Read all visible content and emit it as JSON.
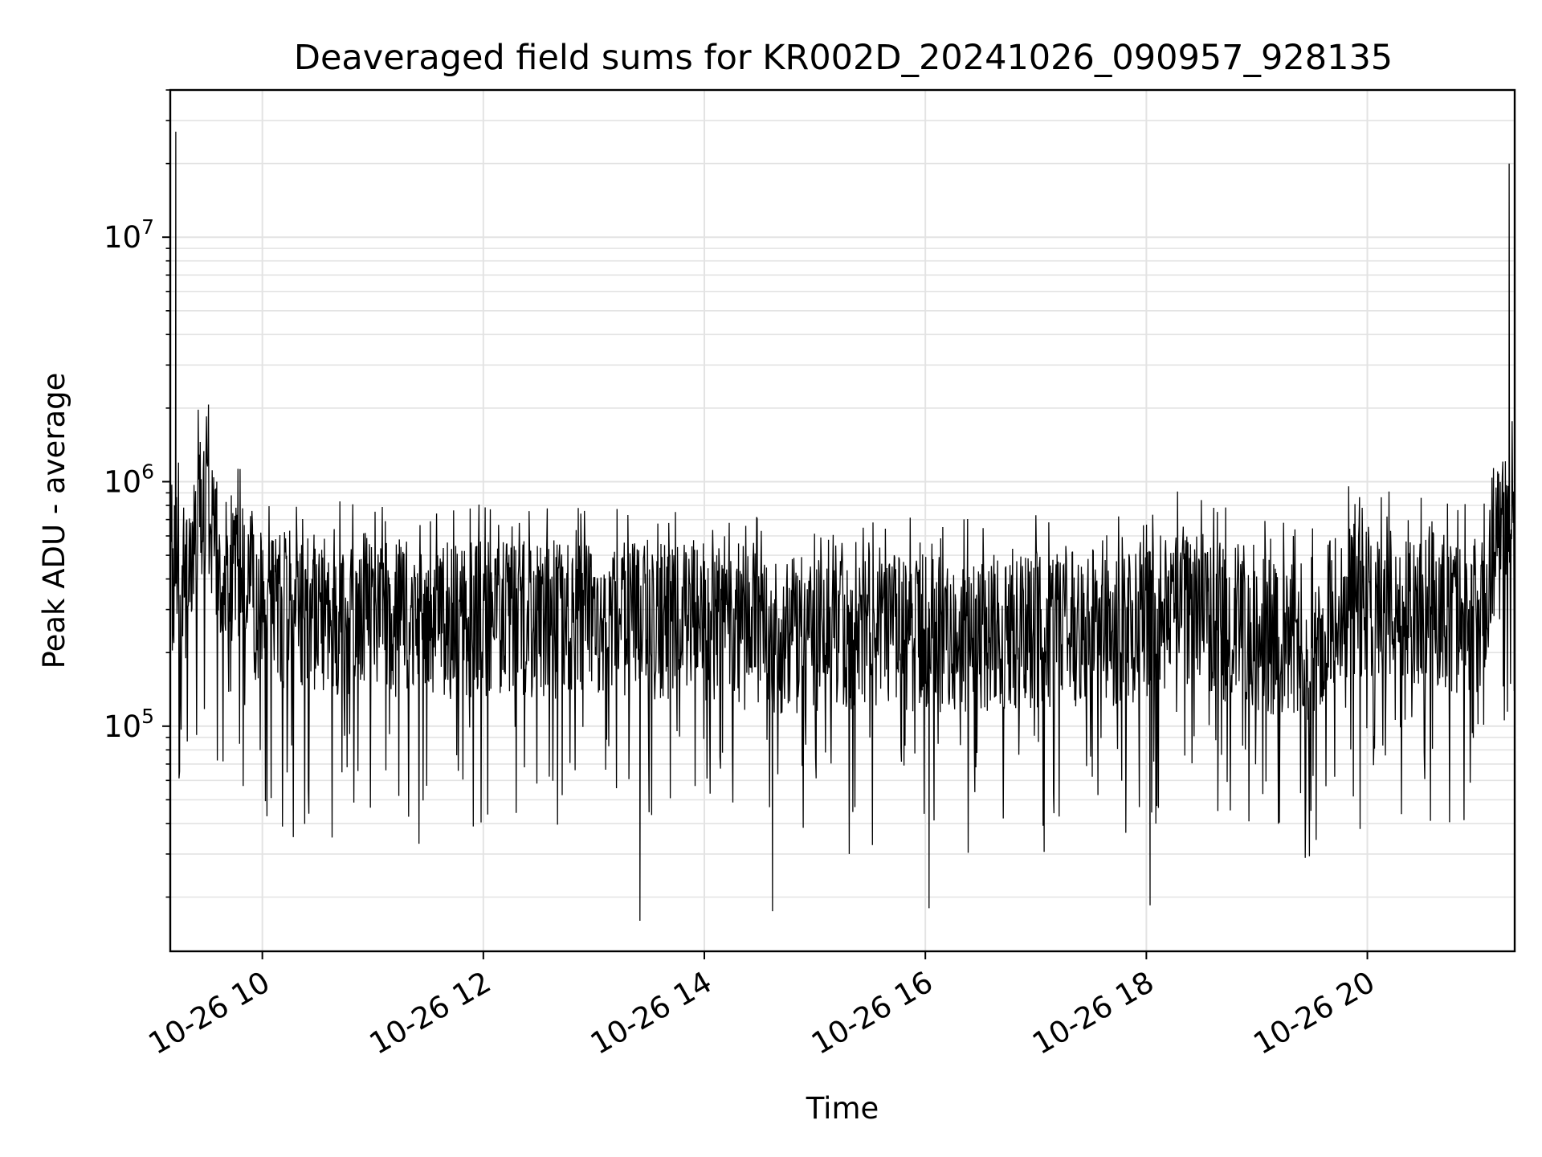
{
  "chart_data": {
    "type": "line",
    "title": "Deaveraged field sums for KR002D_20241026_090957_928135",
    "xlabel": "Time",
    "ylabel": "Peak ADU - average",
    "x_scale": "time",
    "y_scale": "log",
    "xlim": [
      "2024-10-26 09:10",
      "2024-10-26 21:20"
    ],
    "ylim": [
      12000,
      40000000
    ],
    "grid": true,
    "legend": "none",
    "x_ticks": [
      {
        "t": "2024-10-26 10:00",
        "label": "10-26 10"
      },
      {
        "t": "2024-10-26 12:00",
        "label": "10-26 12"
      },
      {
        "t": "2024-10-26 14:00",
        "label": "10-26 14"
      },
      {
        "t": "2024-10-26 16:00",
        "label": "10-26 16"
      },
      {
        "t": "2024-10-26 18:00",
        "label": "10-26 18"
      },
      {
        "t": "2024-10-26 20:00",
        "label": "10-26 20"
      }
    ],
    "y_ticks": [
      {
        "value": 100000,
        "base": "10",
        "exp": "5"
      },
      {
        "value": 1000000,
        "base": "10",
        "exp": "6"
      },
      {
        "value": 10000000,
        "base": "10",
        "exp": "7"
      }
    ],
    "series": [
      {
        "color": "#000000",
        "x": [
          "2024-10-26 09:10",
          "2024-10-26 09:15",
          "2024-10-26 09:20",
          "2024-10-26 09:25",
          "2024-10-26 09:30",
          "2024-10-26 09:35",
          "2024-10-26 09:40",
          "2024-10-26 09:50",
          "2024-10-26 10:00",
          "2024-10-26 10:30",
          "2024-10-26 11:00",
          "2024-10-26 11:30",
          "2024-10-26 12:00",
          "2024-10-26 12:30",
          "2024-10-26 13:00",
          "2024-10-26 13:30",
          "2024-10-26 14:00",
          "2024-10-26 14:30",
          "2024-10-26 15:00",
          "2024-10-26 15:30",
          "2024-10-26 16:00",
          "2024-10-26 16:30",
          "2024-10-26 17:00",
          "2024-10-26 17:30",
          "2024-10-26 17:50",
          "2024-10-26 18:00",
          "2024-10-26 18:15",
          "2024-10-26 18:30",
          "2024-10-26 19:00",
          "2024-10-26 19:30",
          "2024-10-26 19:45",
          "2024-10-26 20:00",
          "2024-10-26 20:30",
          "2024-10-26 20:50",
          "2024-10-26 21:00",
          "2024-10-26 21:10",
          "2024-10-26 21:15",
          "2024-10-26 21:20"
        ],
        "y": [
          400000,
          450000,
          350000,
          700000,
          750000,
          550000,
          450000,
          380000,
          300000,
          280000,
          280000,
          270000,
          270000,
          275000,
          270000,
          265000,
          260000,
          240000,
          230000,
          250000,
          240000,
          235000,
          250000,
          250000,
          240000,
          250000,
          330000,
          280000,
          240000,
          220000,
          330000,
          310000,
          300000,
          280000,
          280000,
          550000,
          580000,
          600000
        ],
        "spikes": [
          {
            "x": "2024-10-26 09:13",
            "y": 27000000
          },
          {
            "x": "2024-10-26 21:17",
            "y": 20000000
          }
        ],
        "lows": [
          {
            "x": "2024-10-26 13:25",
            "y": 16000
          },
          {
            "x": "2024-10-26 14:37",
            "y": 17500
          },
          {
            "x": "2024-10-26 16:02",
            "y": 18000
          },
          {
            "x": "2024-10-26 18:02",
            "y": 18500
          }
        ]
      }
    ]
  }
}
